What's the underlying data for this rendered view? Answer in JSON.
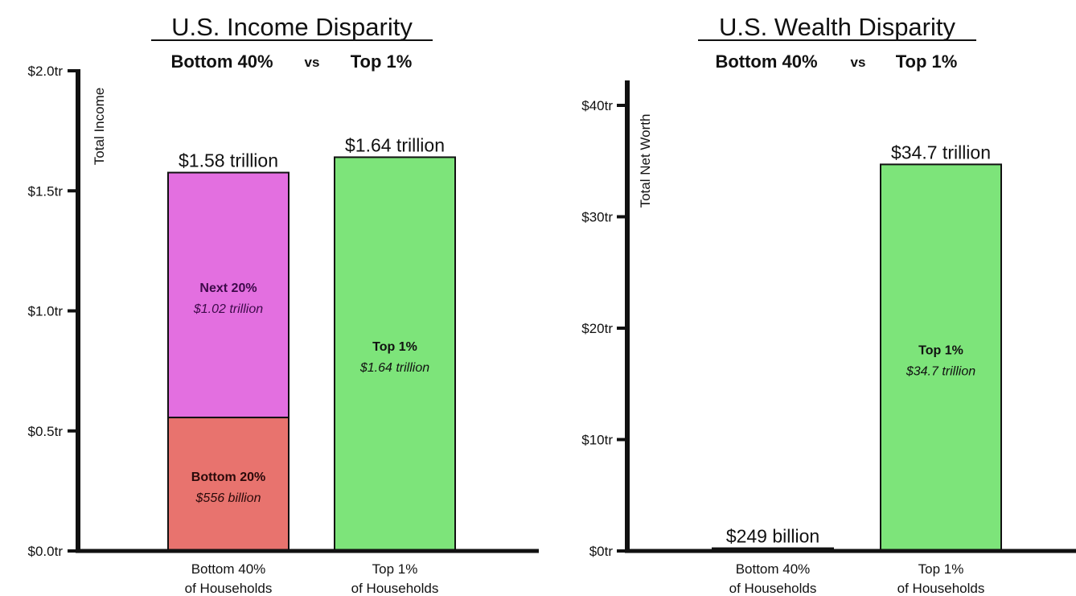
{
  "chart_data": [
    {
      "type": "bar",
      "stacked": true,
      "title": "U.S. Income Disparity",
      "subtitle": {
        "left": "Bottom 40%",
        "vs": "vs",
        "right": "Top 1%"
      },
      "ylabel": "Total Income",
      "xlabel": "",
      "ylim": [
        0,
        2.0
      ],
      "yticks": [
        0.0,
        0.5,
        1.0,
        1.5,
        2.0
      ],
      "ytick_labels": [
        "$0.0tr",
        "$0.5tr",
        "$1.0tr",
        "$1.5tr",
        "$2.0tr"
      ],
      "grid": false,
      "categories": [
        {
          "line1": "Bottom 40%",
          "line2": "of Households"
        },
        {
          "line1": "Top 1%",
          "line2": "of Households"
        }
      ],
      "totals": [
        "$1.58 trillion",
        "$1.64 trillion"
      ],
      "bars": [
        {
          "segments": [
            {
              "name": "Bottom 20%",
              "label": "$556 billion",
              "value": 0.556,
              "color": "#e8736e",
              "text_color": "#2a0a0a"
            },
            {
              "name": "Next 20%",
              "label": "$1.02 trillion",
              "value": 1.02,
              "color": "#e36fe0",
              "text_color": "#3d0a4a"
            }
          ]
        },
        {
          "segments": [
            {
              "name": "Top 1%",
              "label": "$1.64 trillion",
              "value": 1.64,
              "color": "#7de47a",
              "text_color": "#111111"
            }
          ]
        }
      ]
    },
    {
      "type": "bar",
      "stacked": true,
      "title": "U.S. Wealth Disparity",
      "subtitle": {
        "left": "Bottom 40%",
        "vs": "vs",
        "right": "Top 1%"
      },
      "ylabel": "Total Net Worth",
      "xlabel": "",
      "ylim": [
        0,
        40
      ],
      "yticks": [
        0,
        10,
        20,
        30,
        40
      ],
      "ytick_labels": [
        "$0tr",
        "$10tr",
        "$20tr",
        "$30tr",
        "$40tr"
      ],
      "grid": false,
      "categories": [
        {
          "line1": "Bottom 40%",
          "line2": "of Households"
        },
        {
          "line1": "Top 1%",
          "line2": "of Households"
        }
      ],
      "totals": [
        "$249 billion",
        "$34.7 trillion"
      ],
      "bars": [
        {
          "segments": [
            {
              "name": "",
              "label": "",
              "value": 0.249,
              "color": "#e36fe0",
              "text_color": "#111111"
            }
          ]
        },
        {
          "segments": [
            {
              "name": "Top 1%",
              "label": "$34.7 trillion",
              "value": 34.7,
              "color": "#7de47a",
              "text_color": "#111111"
            }
          ]
        }
      ]
    }
  ]
}
